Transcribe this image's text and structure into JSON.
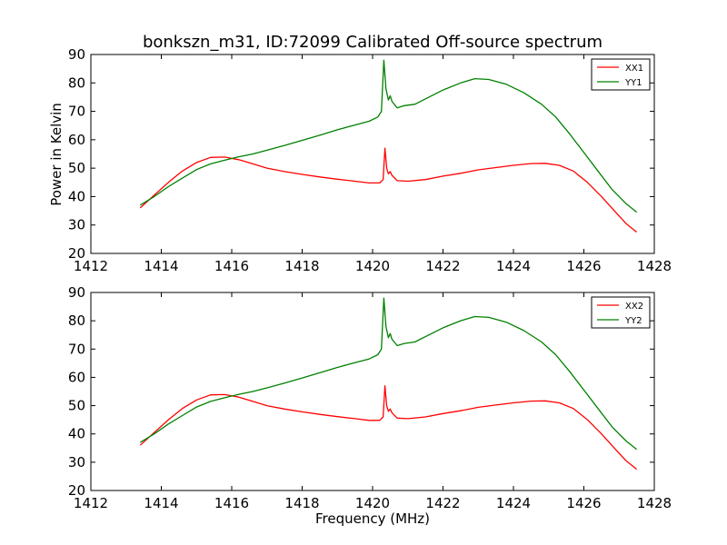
{
  "chart_data": [
    {
      "type": "line",
      "title": "bonkszn_m31, ID:72099 Calibrated Off-source spectrum",
      "xlabel": "",
      "ylabel": "Power in Kelvin",
      "xlim": [
        1412,
        1428
      ],
      "ylim": [
        20,
        90
      ],
      "xticks": [
        "1412",
        "1414",
        "1416",
        "1418",
        "1420",
        "1422",
        "1424",
        "1426",
        "1428"
      ],
      "yticks": [
        "20",
        "30",
        "40",
        "50",
        "60",
        "70",
        "80",
        "90"
      ],
      "legend_position": "top-right",
      "series": [
        {
          "name": "XX1",
          "color": "#ff0000",
          "points": [
            [
              1413.4,
              36
            ],
            [
              1413.8,
              40.5
            ],
            [
              1414.2,
              45
            ],
            [
              1414.6,
              49
            ],
            [
              1415.0,
              52
            ],
            [
              1415.4,
              53.8
            ],
            [
              1415.8,
              53.9
            ],
            [
              1416.2,
              53
            ],
            [
              1416.6,
              51.5
            ],
            [
              1417.0,
              50
            ],
            [
              1417.5,
              48.8
            ],
            [
              1418.0,
              47.8
            ],
            [
              1418.5,
              46.9
            ],
            [
              1419.0,
              46.1
            ],
            [
              1419.5,
              45.4
            ],
            [
              1419.9,
              44.8
            ],
            [
              1420.2,
              44.8
            ],
            [
              1420.3,
              46
            ],
            [
              1420.35,
              57
            ],
            [
              1420.4,
              50
            ],
            [
              1420.45,
              48
            ],
            [
              1420.5,
              48.8
            ],
            [
              1420.55,
              47.5
            ],
            [
              1420.7,
              45.6
            ],
            [
              1421.0,
              45.4
            ],
            [
              1421.5,
              46
            ],
            [
              1422.0,
              47.2
            ],
            [
              1422.5,
              48.2
            ],
            [
              1423.0,
              49.4
            ],
            [
              1423.5,
              50.2
            ],
            [
              1424.0,
              51
            ],
            [
              1424.5,
              51.6
            ],
            [
              1424.9,
              51.7
            ],
            [
              1425.3,
              51
            ],
            [
              1425.7,
              49
            ],
            [
              1426.1,
              45
            ],
            [
              1426.5,
              40
            ],
            [
              1426.9,
              34.5
            ],
            [
              1427.2,
              30.5
            ],
            [
              1427.5,
              27.5
            ]
          ]
        },
        {
          "name": "YY1",
          "color": "#008000",
          "points": [
            [
              1413.4,
              37
            ],
            [
              1413.8,
              40
            ],
            [
              1414.2,
              43.5
            ],
            [
              1414.6,
              46.5
            ],
            [
              1415.0,
              49.5
            ],
            [
              1415.4,
              51.5
            ],
            [
              1415.8,
              52.8
            ],
            [
              1416.2,
              54
            ],
            [
              1416.6,
              55
            ],
            [
              1417.0,
              56.3
            ],
            [
              1417.5,
              58
            ],
            [
              1418.0,
              59.8
            ],
            [
              1418.5,
              61.6
            ],
            [
              1419.0,
              63.5
            ],
            [
              1419.5,
              65.2
            ],
            [
              1419.9,
              66.5
            ],
            [
              1420.15,
              68
            ],
            [
              1420.25,
              70
            ],
            [
              1420.32,
              88
            ],
            [
              1420.38,
              78
            ],
            [
              1420.45,
              74
            ],
            [
              1420.5,
              75.5
            ],
            [
              1420.55,
              73.5
            ],
            [
              1420.7,
              71.2
            ],
            [
              1420.9,
              72
            ],
            [
              1421.2,
              72.5
            ],
            [
              1421.6,
              75
            ],
            [
              1422.0,
              77.5
            ],
            [
              1422.5,
              80
            ],
            [
              1422.9,
              81.5
            ],
            [
              1423.3,
              81.2
            ],
            [
              1423.8,
              79.5
            ],
            [
              1424.3,
              76.5
            ],
            [
              1424.8,
              72.5
            ],
            [
              1425.2,
              68
            ],
            [
              1425.6,
              62
            ],
            [
              1426.0,
              55.5
            ],
            [
              1426.4,
              49
            ],
            [
              1426.8,
              42.5
            ],
            [
              1427.2,
              37.5
            ],
            [
              1427.5,
              34.5
            ]
          ]
        }
      ]
    },
    {
      "type": "line",
      "title": "",
      "xlabel": "Frequency (MHz)",
      "ylabel": "",
      "xlim": [
        1412,
        1428
      ],
      "ylim": [
        20,
        90
      ],
      "xticks": [
        "1412",
        "1414",
        "1416",
        "1418",
        "1420",
        "1422",
        "1424",
        "1426",
        "1428"
      ],
      "yticks": [
        "20",
        "30",
        "40",
        "50",
        "60",
        "70",
        "80",
        "90"
      ],
      "legend_position": "top-right",
      "series": [
        {
          "name": "XX2",
          "color": "#ff0000",
          "points": [
            [
              1413.4,
              36
            ],
            [
              1413.8,
              40.5
            ],
            [
              1414.2,
              45
            ],
            [
              1414.6,
              49
            ],
            [
              1415.0,
              52
            ],
            [
              1415.4,
              53.8
            ],
            [
              1415.8,
              53.9
            ],
            [
              1416.2,
              53
            ],
            [
              1416.6,
              51.5
            ],
            [
              1417.0,
              50
            ],
            [
              1417.5,
              48.8
            ],
            [
              1418.0,
              47.8
            ],
            [
              1418.5,
              46.9
            ],
            [
              1419.0,
              46.1
            ],
            [
              1419.5,
              45.4
            ],
            [
              1419.9,
              44.8
            ],
            [
              1420.2,
              44.8
            ],
            [
              1420.3,
              46
            ],
            [
              1420.35,
              57
            ],
            [
              1420.4,
              50
            ],
            [
              1420.45,
              48
            ],
            [
              1420.5,
              48.8
            ],
            [
              1420.55,
              47.5
            ],
            [
              1420.7,
              45.6
            ],
            [
              1421.0,
              45.4
            ],
            [
              1421.5,
              46
            ],
            [
              1422.0,
              47.2
            ],
            [
              1422.5,
              48.2
            ],
            [
              1423.0,
              49.4
            ],
            [
              1423.5,
              50.2
            ],
            [
              1424.0,
              51
            ],
            [
              1424.5,
              51.6
            ],
            [
              1424.9,
              51.7
            ],
            [
              1425.3,
              51
            ],
            [
              1425.7,
              49
            ],
            [
              1426.1,
              45
            ],
            [
              1426.5,
              40
            ],
            [
              1426.9,
              34.5
            ],
            [
              1427.2,
              30.5
            ],
            [
              1427.5,
              27.5
            ]
          ]
        },
        {
          "name": "YY2",
          "color": "#008000",
          "points": [
            [
              1413.4,
              37
            ],
            [
              1413.8,
              40
            ],
            [
              1414.2,
              43.5
            ],
            [
              1414.6,
              46.5
            ],
            [
              1415.0,
              49.5
            ],
            [
              1415.4,
              51.5
            ],
            [
              1415.8,
              52.8
            ],
            [
              1416.2,
              54
            ],
            [
              1416.6,
              55
            ],
            [
              1417.0,
              56.3
            ],
            [
              1417.5,
              58
            ],
            [
              1418.0,
              59.8
            ],
            [
              1418.5,
              61.6
            ],
            [
              1419.0,
              63.5
            ],
            [
              1419.5,
              65.2
            ],
            [
              1419.9,
              66.5
            ],
            [
              1420.15,
              68
            ],
            [
              1420.25,
              70
            ],
            [
              1420.32,
              88
            ],
            [
              1420.38,
              78
            ],
            [
              1420.45,
              74
            ],
            [
              1420.5,
              75.5
            ],
            [
              1420.55,
              73.5
            ],
            [
              1420.7,
              71.2
            ],
            [
              1420.9,
              72
            ],
            [
              1421.2,
              72.5
            ],
            [
              1421.6,
              75
            ],
            [
              1422.0,
              77.5
            ],
            [
              1422.5,
              80
            ],
            [
              1422.9,
              81.5
            ],
            [
              1423.3,
              81.2
            ],
            [
              1423.8,
              79.5
            ],
            [
              1424.3,
              76.5
            ],
            [
              1424.8,
              72.5
            ],
            [
              1425.2,
              68
            ],
            [
              1425.6,
              62
            ],
            [
              1426.0,
              55.5
            ],
            [
              1426.4,
              49
            ],
            [
              1426.8,
              42.5
            ],
            [
              1427.2,
              37.5
            ],
            [
              1427.5,
              34.5
            ]
          ]
        }
      ]
    }
  ]
}
